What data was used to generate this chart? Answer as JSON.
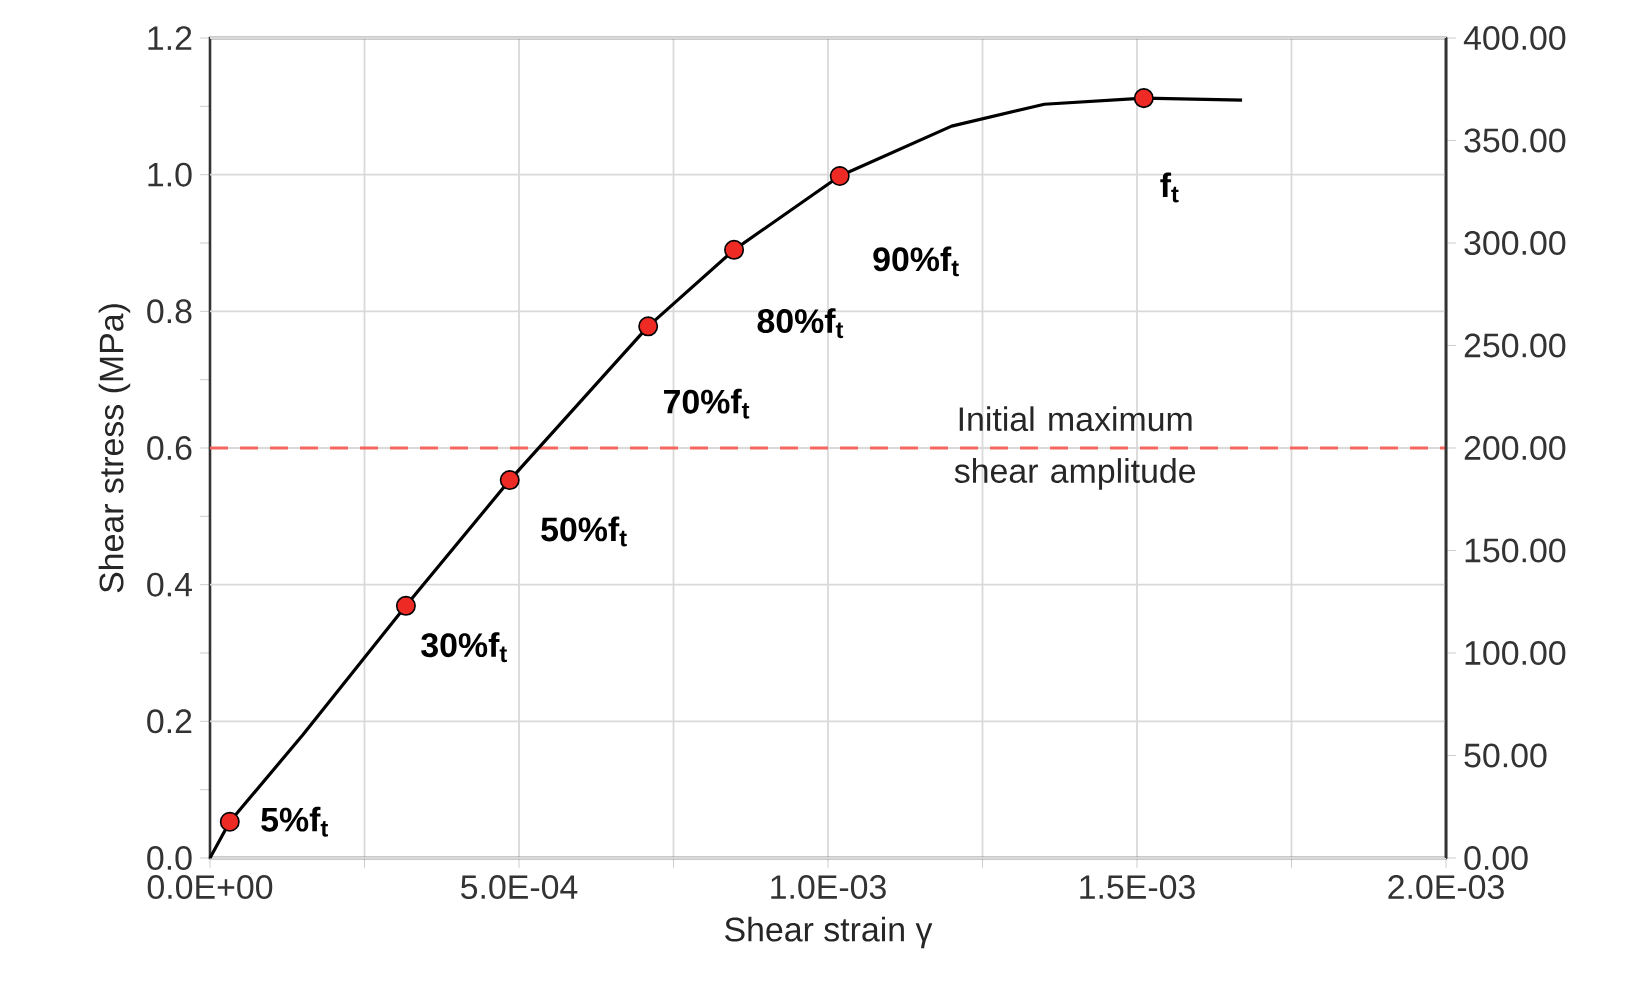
{
  "chart_data": {
    "type": "line",
    "xlabel": "Shear strain γ",
    "ylabel": "Shear stress (MPa)",
    "xlim": [
      0,
      0.002
    ],
    "ylim": [
      0,
      1.2
    ],
    "y2lim": [
      0,
      400
    ],
    "xticks": [
      {
        "value": 0,
        "label": "0.0E+00"
      },
      {
        "value": 0.00025,
        "label": null
      },
      {
        "value": 0.0005,
        "label": "5.0E-04"
      },
      {
        "value": 0.00075,
        "label": null
      },
      {
        "value": 0.001,
        "label": "1.0E-03"
      },
      {
        "value": 0.00125,
        "label": null
      },
      {
        "value": 0.0015,
        "label": "1.5E-03"
      },
      {
        "value": 0.00175,
        "label": null
      },
      {
        "value": 0.002,
        "label": "2.0E-03"
      }
    ],
    "yticks": [
      {
        "value": 0,
        "label": "0.0"
      },
      {
        "value": 0.1,
        "label": null
      },
      {
        "value": 0.2,
        "label": "0.2"
      },
      {
        "value": 0.3,
        "label": null
      },
      {
        "value": 0.4,
        "label": "0.4"
      },
      {
        "value": 0.5,
        "label": null
      },
      {
        "value": 0.6,
        "label": "0.6"
      },
      {
        "value": 0.7,
        "label": null
      },
      {
        "value": 0.8,
        "label": "0.8"
      },
      {
        "value": 0.9,
        "label": null
      },
      {
        "value": 1.0,
        "label": "1.0"
      },
      {
        "value": 1.1,
        "label": null
      },
      {
        "value": 1.2,
        "label": "1.2"
      }
    ],
    "y2ticks": [
      {
        "value": 0,
        "label": "0.00"
      },
      {
        "value": 50,
        "label": "50.00"
      },
      {
        "value": 100,
        "label": "100.00"
      },
      {
        "value": 150,
        "label": "150.00"
      },
      {
        "value": 200,
        "label": "200.00"
      },
      {
        "value": 250,
        "label": "250.00"
      },
      {
        "value": 300,
        "label": "300.00"
      },
      {
        "value": 350,
        "label": "350.00"
      },
      {
        "value": 400,
        "label": "400.00"
      }
    ],
    "grid": true,
    "series": [
      {
        "color": "#000000",
        "marker": "none",
        "x": [
          0,
          3.2e-05,
          0.00015,
          0.000317,
          0.000485,
          0.000709,
          0.000848,
          0.001019,
          0.0012,
          0.00135,
          0.001511,
          0.00167
        ],
        "values": [
          0,
          0.053,
          0.18,
          0.369,
          0.553,
          0.778,
          0.89,
          0.998,
          1.071,
          1.103,
          1.112,
          1.109
        ]
      },
      {
        "type": "scatter",
        "color": "#ee2a24",
        "marker": "circle",
        "x": [
          3.2e-05,
          0.000317,
          0.000485,
          0.000709,
          0.000848,
          0.001019,
          0.001511
        ],
        "values": [
          0.053,
          0.369,
          0.553,
          0.778,
          0.89,
          0.998,
          1.112
        ]
      }
    ],
    "ref_lines": [
      {
        "axis": "y",
        "value": 0.6,
        "label": "Initial maximum shear amplitude",
        "color": "#f4665e",
        "line_style": "dashed"
      }
    ],
    "annotations": [
      {
        "text": "5%f$_{t}$",
        "x": 3.2e-05,
        "y": 0.053
      },
      {
        "text": "30%f$_{t}$",
        "x": 0.000317,
        "y": 0.369
      },
      {
        "text": "50%f$_{t}$",
        "x": 0.000485,
        "y": 0.553
      },
      {
        "text": "70%f$_{t}$",
        "x": 0.000709,
        "y": 0.778
      },
      {
        "text": "80%f$_{t}$",
        "x": 0.000848,
        "y": 0.89
      },
      {
        "text": "90%f$_{t}$",
        "x": 0.001019,
        "y": 0.998
      },
      {
        "text": "f$_{t}$",
        "x": 0.001511,
        "y": 1.112
      }
    ]
  }
}
